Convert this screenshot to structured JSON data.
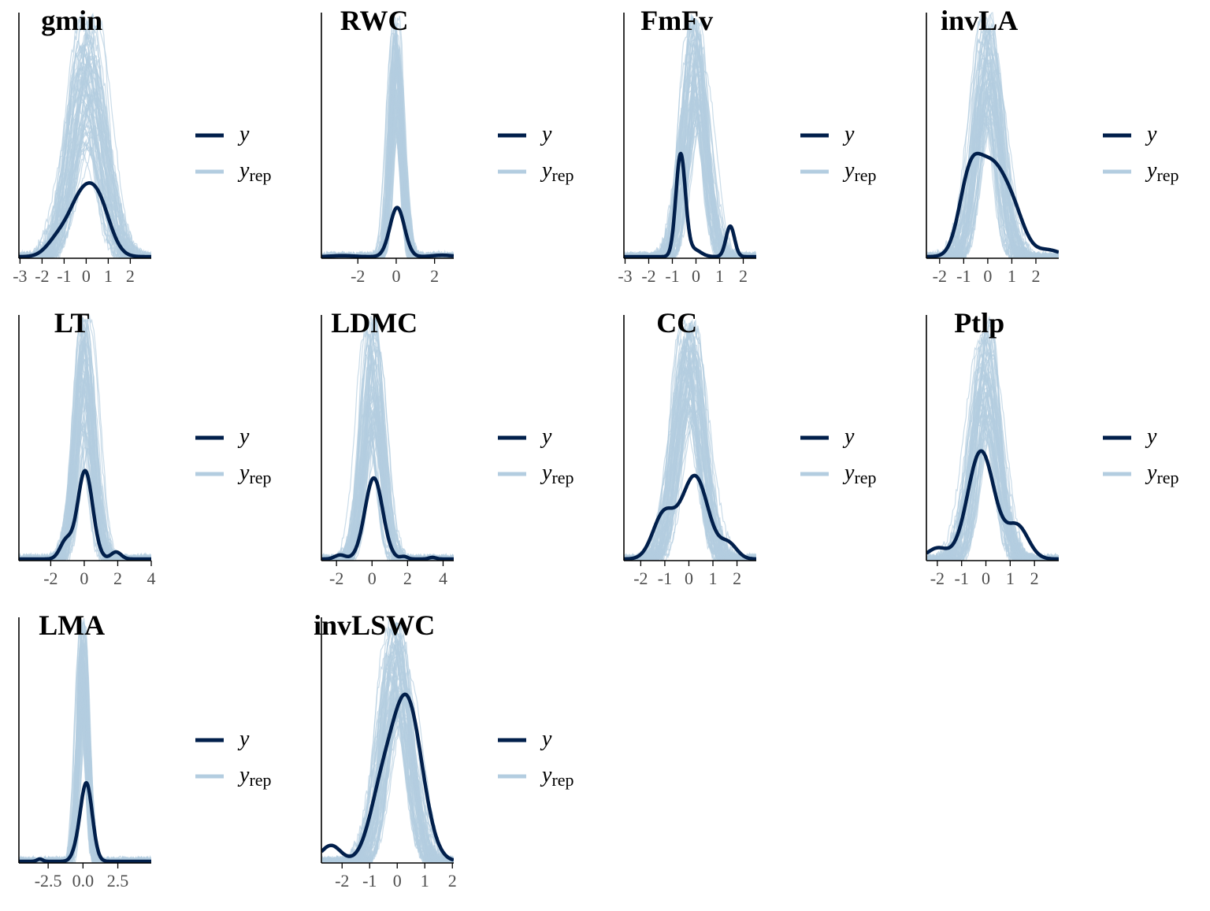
{
  "colors": {
    "y": "#011f4b",
    "yrep": "#b3cde0",
    "axis": "#000000",
    "tick_label": "#4d4d4d"
  },
  "legend": {
    "y_label": "y",
    "yrep_label": "y",
    "yrep_sub": "rep"
  },
  "chart_data": [
    {
      "type": "area",
      "title": "gmin",
      "xlim": [
        -3.05,
        2.95
      ],
      "x_ticks": [
        -3,
        -2,
        -1,
        0,
        1,
        2
      ],
      "tick_labels": [
        "-3",
        "-2",
        "-1",
        "0",
        "1",
        "2"
      ],
      "y_peak_rel": 0.3,
      "yrep_sigma": 0.72,
      "yrep_peak_range": [
        0.45,
        1.0
      ],
      "y_components": [
        [
          0.25,
          -1.3,
          0.5
        ],
        [
          0.75,
          -0.3,
          0.55
        ],
        [
          0.8,
          0.55,
          0.55
        ]
      ]
    },
    {
      "type": "area",
      "title": "RWC",
      "xlim": [
        -3.9,
        3.0
      ],
      "x_ticks": [
        -2,
        0,
        2
      ],
      "tick_labels": [
        "-2",
        "0",
        "2"
      ],
      "y_peak_rel": 0.2,
      "yrep_sigma": 0.32,
      "yrep_peak_range": [
        0.5,
        1.0
      ],
      "y_components": [
        [
          0.02,
          -2.8,
          0.6
        ],
        [
          0.03,
          2.4,
          0.5
        ],
        [
          1.0,
          0.05,
          0.38
        ]
      ]
    },
    {
      "type": "area",
      "title": "FmFv",
      "xlim": [
        -3.05,
        2.55
      ],
      "x_ticks": [
        -3,
        -2,
        -1,
        0,
        1,
        2
      ],
      "tick_labels": [
        "-3",
        "-2",
        "-1",
        "0",
        "1",
        "2"
      ],
      "y_peak_rel": 0.42,
      "yrep_sigma": 0.48,
      "yrep_peak_range": [
        0.55,
        1.0
      ],
      "y_components": [
        [
          1.0,
          -0.65,
          0.2
        ],
        [
          0.07,
          -0.1,
          0.3
        ],
        [
          0.3,
          1.45,
          0.18
        ]
      ]
    },
    {
      "type": "area",
      "title": "invLA",
      "xlim": [
        -2.55,
        2.95
      ],
      "x_ticks": [
        -2,
        -1,
        0,
        1,
        2
      ],
      "tick_labels": [
        "-2",
        "-1",
        "0",
        "1",
        "2"
      ],
      "y_peak_rel": 0.42,
      "yrep_sigma": 0.52,
      "yrep_peak_range": [
        0.55,
        1.0
      ],
      "y_components": [
        [
          0.55,
          -0.75,
          0.45
        ],
        [
          0.6,
          0.15,
          0.55
        ],
        [
          0.3,
          1.05,
          0.5
        ],
        [
          0.05,
          2.5,
          0.5
        ]
      ]
    },
    {
      "type": "area",
      "title": "LT",
      "xlim": [
        -3.9,
        4.0
      ],
      "x_ticks": [
        -2,
        0,
        2,
        4
      ],
      "tick_labels": [
        "-2",
        "0",
        "2",
        "4"
      ],
      "y_peak_rel": 0.36,
      "yrep_sigma": 0.55,
      "yrep_peak_range": [
        0.45,
        1.0
      ],
      "y_components": [
        [
          0.2,
          -1.1,
          0.35
        ],
        [
          1.0,
          0.05,
          0.45
        ],
        [
          0.08,
          1.9,
          0.3
        ]
      ]
    },
    {
      "type": "area",
      "title": "LDMC",
      "xlim": [
        -2.85,
        4.6
      ],
      "x_ticks": [
        -2,
        0,
        2,
        4
      ],
      "tick_labels": [
        "-2",
        "0",
        "2",
        "4"
      ],
      "y_peak_rel": 0.33,
      "yrep_sigma": 0.55,
      "yrep_peak_range": [
        0.5,
        1.0
      ],
      "y_components": [
        [
          0.05,
          -1.8,
          0.3
        ],
        [
          1.0,
          0.1,
          0.5
        ],
        [
          0.03,
          1.8,
          0.2
        ],
        [
          0.02,
          3.4,
          0.2
        ]
      ]
    },
    {
      "type": "area",
      "title": "CC",
      "xlim": [
        -2.7,
        2.8
      ],
      "x_ticks": [
        -2,
        -1,
        0,
        1,
        2
      ],
      "tick_labels": [
        "-2",
        "-1",
        "0",
        "1",
        "2"
      ],
      "y_peak_rel": 0.34,
      "yrep_sigma": 0.55,
      "yrep_peak_range": [
        0.6,
        1.0
      ],
      "y_components": [
        [
          0.45,
          -1.05,
          0.45
        ],
        [
          0.85,
          0.25,
          0.55
        ],
        [
          0.15,
          1.65,
          0.35
        ]
      ]
    },
    {
      "type": "area",
      "title": "Ptlp",
      "xlim": [
        -2.45,
        3.0
      ],
      "x_ticks": [
        -2,
        -1,
        0,
        1,
        2
      ],
      "tick_labels": [
        "-2",
        "-1",
        "0",
        "1",
        "2"
      ],
      "y_peak_rel": 0.44,
      "yrep_sigma": 0.52,
      "yrep_peak_range": [
        0.5,
        1.0
      ],
      "y_components": [
        [
          0.1,
          -2.0,
          0.4
        ],
        [
          1.0,
          -0.2,
          0.55
        ],
        [
          0.3,
          1.3,
          0.45
        ]
      ]
    },
    {
      "type": "area",
      "title": "LMA",
      "xlim": [
        -4.6,
        4.9
      ],
      "x_ticks": [
        -2.5,
        0.0,
        2.5
      ],
      "tick_labels": [
        "-2.5",
        "0.0",
        "2.5"
      ],
      "y_peak_rel": 0.32,
      "yrep_sigma": 0.36,
      "yrep_peak_range": [
        0.55,
        1.0
      ],
      "y_components": [
        [
          0.03,
          -3.1,
          0.2
        ],
        [
          0.1,
          -0.45,
          0.35
        ],
        [
          1.0,
          0.25,
          0.42
        ]
      ]
    },
    {
      "type": "area",
      "title": "invLSWC",
      "xlim": [
        -2.75,
        2.05
      ],
      "x_ticks": [
        -2,
        -1,
        0,
        1,
        2
      ],
      "tick_labels": [
        "-2",
        "-1",
        "0",
        "1",
        "2"
      ],
      "y_peak_rel": 0.68,
      "yrep_sigma": 0.52,
      "yrep_peak_range": [
        0.6,
        1.0
      ],
      "y_components": [
        [
          0.1,
          -2.4,
          0.35
        ],
        [
          0.35,
          -0.6,
          0.45
        ],
        [
          1.0,
          0.35,
          0.55
        ]
      ]
    }
  ]
}
